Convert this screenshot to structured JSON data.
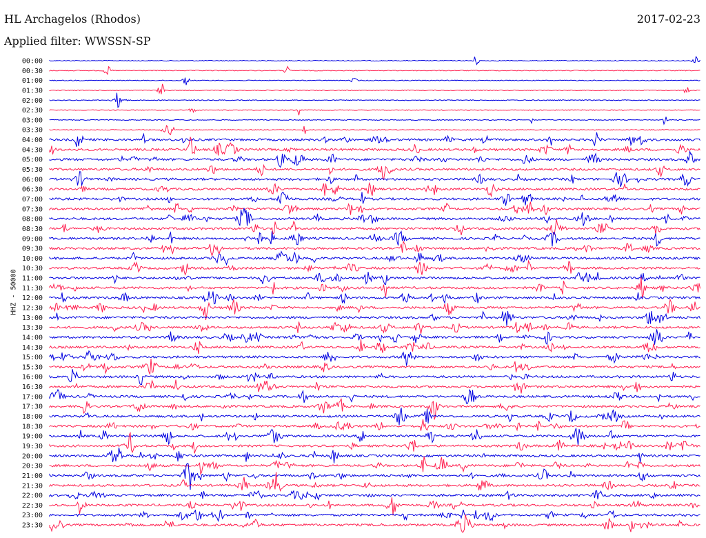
{
  "header": {
    "station": "HL Archagelos (Rhodos)",
    "date": "2017-02-23",
    "filter_label": "Applied filter: WWSSN-SP"
  },
  "chart_data": {
    "type": "helicorder",
    "ylabel": "HHZ - 50000",
    "colors": {
      "even": "#0000e0",
      "odd": "#ff1f4f"
    },
    "tick_labels": [
      "00:00",
      "00:30",
      "01:00",
      "01:30",
      "02:00",
      "02:30",
      "03:00",
      "03:30",
      "04:00",
      "04:30",
      "05:00",
      "05:30",
      "06:00",
      "06:30",
      "07:00",
      "07:30",
      "08:00",
      "08:30",
      "09:00",
      "09:30",
      "10:00",
      "10:30",
      "11:00",
      "11:30",
      "12:00",
      "12:30",
      "13:00",
      "13:30",
      "14:00",
      "14:30",
      "15:00",
      "15:30",
      "16:00",
      "16:30",
      "17:00",
      "17:30",
      "18:00",
      "18:30",
      "19:00",
      "19:30",
      "20:00",
      "20:30",
      "21:00",
      "21:30",
      "22:00",
      "22:30",
      "23:00",
      "23:30"
    ]
  }
}
